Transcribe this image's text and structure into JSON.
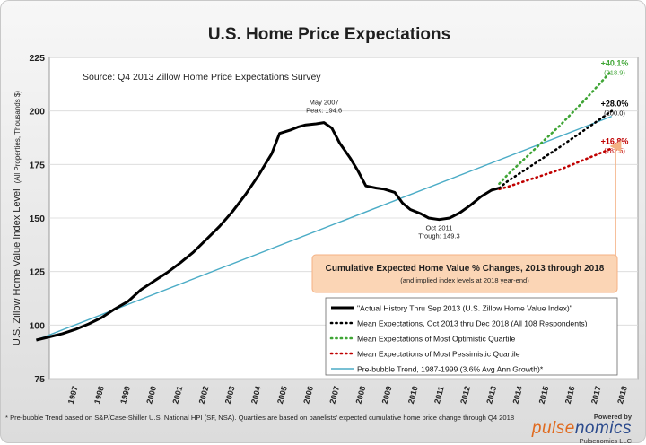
{
  "chart_data": {
    "type": "line",
    "title": "U.S. Home Price Expectations",
    "source_note": "Source: Q4 2013 Zillow Home Price Expectations Survey",
    "ylabel": "U.S. Zillow Home Value Index Level",
    "ylabel_small": "(All Properties, Thousands $)",
    "ylim": [
      75,
      225
    ],
    "xlim": [
      1996.5,
      2019.0
    ],
    "yticks": [
      75,
      100,
      125,
      150,
      175,
      200,
      225
    ],
    "xticks": [
      "1997",
      "1998",
      "1999",
      "2000",
      "2001",
      "2002",
      "2003",
      "2004",
      "2005",
      "2006",
      "2007",
      "2008",
      "2009",
      "2010",
      "2011",
      "2012",
      "2013",
      "2014",
      "2015",
      "2016",
      "2017",
      "2018"
    ],
    "grid": "horizontal",
    "legend_position": "bottom-right",
    "colors": {
      "actual": "#000000",
      "mean": "#000000",
      "optimistic": "#3fa535",
      "pessimistic": "#c00000",
      "trend": "#4bacc6",
      "callout_box": "#fbd5b5",
      "callout_arrow": "#f4b183"
    },
    "series": [
      {
        "key": "actual",
        "name": "\"Actual History Thru Sep 2013  (U.S. Zillow Home Value Index)\"",
        "style": "solid-thick",
        "points": [
          [
            1996.0,
            93.0
          ],
          [
            1996.5,
            94.5
          ],
          [
            1997.0,
            96.0
          ],
          [
            1997.5,
            98.0
          ],
          [
            1998.0,
            100.5
          ],
          [
            1998.5,
            103.5
          ],
          [
            1999.0,
            107.5
          ],
          [
            1999.5,
            111.0
          ],
          [
            2000.0,
            116.5
          ],
          [
            2000.5,
            120.5
          ],
          [
            2001.0,
            124.5
          ],
          [
            2001.5,
            129.0
          ],
          [
            2002.0,
            134.0
          ],
          [
            2002.5,
            140.0
          ],
          [
            2003.0,
            146.0
          ],
          [
            2003.5,
            153.0
          ],
          [
            2004.0,
            161.0
          ],
          [
            2004.5,
            170.0
          ],
          [
            2005.0,
            180.0
          ],
          [
            2005.3,
            189.5
          ],
          [
            2005.7,
            191.0
          ],
          [
            2006.0,
            192.5
          ],
          [
            2006.3,
            193.5
          ],
          [
            2006.7,
            194.0
          ],
          [
            2007.0,
            194.6
          ],
          [
            2007.3,
            192.0
          ],
          [
            2007.6,
            185.0
          ],
          [
            2008.0,
            178.0
          ],
          [
            2008.3,
            172.0
          ],
          [
            2008.6,
            165.0
          ],
          [
            2009.0,
            164.0
          ],
          [
            2009.3,
            163.5
          ],
          [
            2009.7,
            162.0
          ],
          [
            2010.0,
            157.0
          ],
          [
            2010.3,
            154.0
          ],
          [
            2010.7,
            152.0
          ],
          [
            2011.0,
            150.0
          ],
          [
            2011.4,
            149.3
          ],
          [
            2011.8,
            150.0
          ],
          [
            2012.2,
            152.5
          ],
          [
            2012.6,
            156.0
          ],
          [
            2013.0,
            160.0
          ],
          [
            2013.4,
            163.0
          ],
          [
            2013.7,
            164.0
          ]
        ]
      },
      {
        "key": "mean",
        "name": "Mean Expectations, Oct 2013 thru Dec 2018  (All 108 Respondents)",
        "style": "dotted",
        "points": [
          [
            2013.7,
            164.0
          ],
          [
            2014.0,
            167.0
          ],
          [
            2015.0,
            175.0
          ],
          [
            2016.0,
            183.0
          ],
          [
            2017.0,
            191.5
          ],
          [
            2018.0,
            200.0
          ]
        ]
      },
      {
        "key": "optimistic",
        "name": "Mean Expectations of Most Optimistic Quartile",
        "style": "dotted",
        "points": [
          [
            2013.7,
            166.0
          ],
          [
            2014.0,
            170.0
          ],
          [
            2015.0,
            181.5
          ],
          [
            2016.0,
            193.0
          ],
          [
            2017.0,
            205.5
          ],
          [
            2018.0,
            218.9
          ]
        ]
      },
      {
        "key": "pessimistic",
        "name": "Mean Expectations of Most Pessimistic Quartile",
        "style": "dotted",
        "points": [
          [
            2013.7,
            163.5
          ],
          [
            2014.0,
            164.5
          ],
          [
            2015.0,
            168.5
          ],
          [
            2016.0,
            172.5
          ],
          [
            2017.0,
            177.5
          ],
          [
            2018.0,
            182.5
          ]
        ]
      },
      {
        "key": "trend",
        "name": "Pre-bubble Trend, 1987-1999 (3.6% Avg Ann Growth)*",
        "style": "solid",
        "points": [
          [
            1996.0,
            93.0
          ],
          [
            2018.0,
            197.5
          ]
        ]
      }
    ],
    "annotations": [
      {
        "lines": [
          "May 2007",
          "Peak: 194.6"
        ],
        "x": 2007.0,
        "y": 194.6,
        "anchor": "above"
      },
      {
        "lines": [
          "Oct 2011",
          "Trough: 149.3"
        ],
        "x": 2011.4,
        "y": 149.3,
        "anchor": "below"
      }
    ],
    "end_labels": [
      {
        "series": "optimistic",
        "pct": "+40.1%",
        "level": "(218.9)",
        "y": 218.9
      },
      {
        "series": "mean",
        "pct": "+28.0%",
        "level": "(200.0)",
        "y": 200.0
      },
      {
        "series": "pessimistic",
        "pct": "+16.8%",
        "level": "(182.5)",
        "y": 182.5
      }
    ],
    "callout": {
      "title": "Cumulative Expected Home Value % Changes, 2013 through 2018",
      "subtitle": "(and implied index levels at 2018 year-end)"
    }
  },
  "footnote": "* Pre-bubble Trend based on S&P/Case-Shiller U.S. National HPI (SF, NSA).  Quartiles are based on panelists' expected cumulative home price change through Q4 2018",
  "branding": {
    "powered_by": "Powered by",
    "brand_part1": "pulse",
    "brand_part2": "nomics",
    "company": "Pulsenomics LLC"
  }
}
